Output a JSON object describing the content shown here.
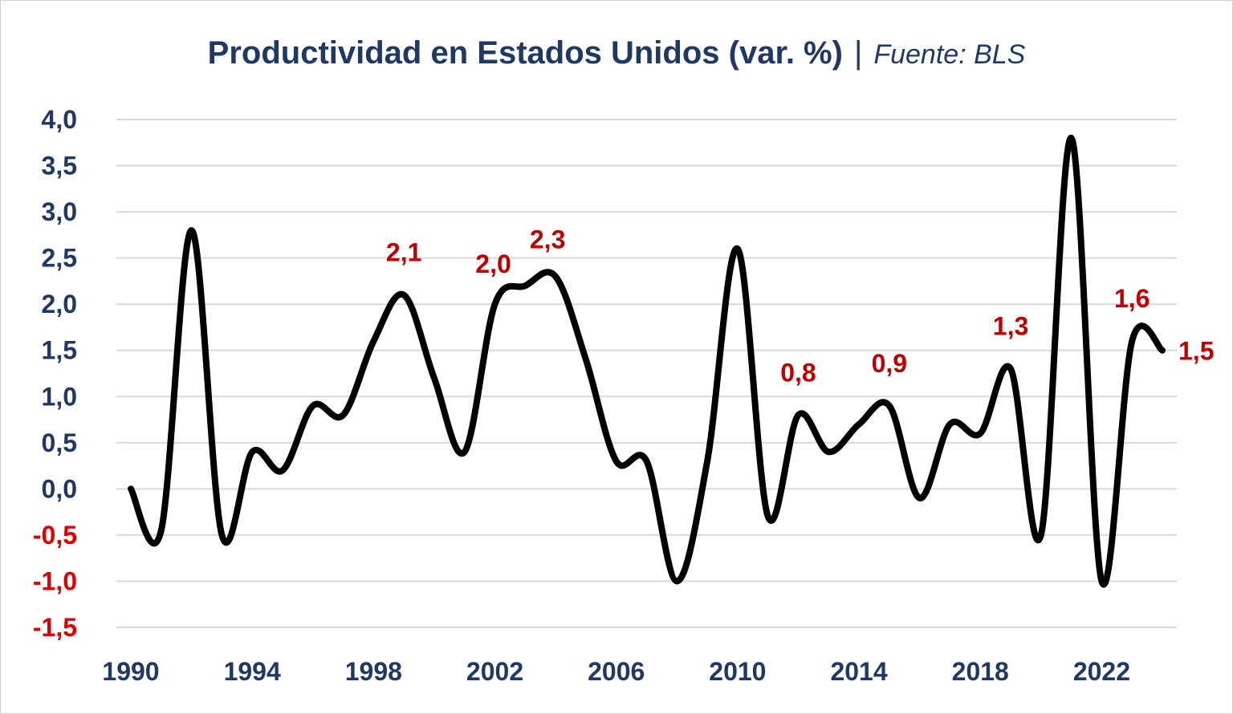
{
  "title": {
    "main": "Productividad en Estados Unidos (var. %)",
    "separator": "|",
    "source": "Fuente: BLS"
  },
  "colors": {
    "title": "#203864",
    "axis_positive": "#203864",
    "axis_negative": "#e00000",
    "line": "#000000",
    "grid": "#d9d9d9",
    "data_label": "#c00000"
  },
  "chart_data": {
    "type": "line",
    "title": "Productividad en Estados Unidos (var. %)",
    "xlabel": "",
    "ylabel": "",
    "ylim": [
      -1.5,
      4.0
    ],
    "y_ticks": [
      "4,0",
      "3,5",
      "3,0",
      "2,5",
      "2,0",
      "1,5",
      "1,0",
      "0,5",
      "0,0",
      "-0,5",
      "-1,0",
      "-1,5"
    ],
    "y_tick_values": [
      4.0,
      3.5,
      3.0,
      2.5,
      2.0,
      1.5,
      1.0,
      0.5,
      0.0,
      -0.5,
      -1.0,
      -1.5
    ],
    "x_ticks": [
      "1990",
      "1994",
      "1998",
      "2002",
      "2006",
      "2010",
      "2014",
      "2018",
      "2022"
    ],
    "x_tick_values": [
      1990,
      1994,
      1998,
      2002,
      2006,
      2010,
      2014,
      2018,
      2022
    ],
    "grid": true,
    "legend": "none",
    "series": [
      {
        "x": [
          1990,
          1991,
          1992,
          1993,
          1994,
          1995,
          1996,
          1997,
          1998,
          1999,
          2000,
          2001,
          2002,
          2003,
          2004,
          2005,
          2006,
          2007,
          2008,
          2009,
          2010,
          2011,
          2012,
          2013,
          2014,
          2015,
          2016,
          2017,
          2018,
          2019,
          2020,
          2021,
          2022,
          2023,
          2024
        ],
        "y": [
          0.0,
          -0.45,
          2.8,
          -0.5,
          0.4,
          0.2,
          0.9,
          0.8,
          1.6,
          2.1,
          1.2,
          0.4,
          2.0,
          2.2,
          2.3,
          1.4,
          0.3,
          0.3,
          -1.0,
          0.3,
          2.6,
          -0.3,
          0.8,
          0.4,
          0.7,
          0.9,
          -0.1,
          0.7,
          0.6,
          1.3,
          -0.5,
          3.8,
          -1.0,
          1.6,
          1.5
        ]
      }
    ],
    "data_labels": [
      {
        "x": 1999,
        "y": 2.1,
        "text": "2,1"
      },
      {
        "x": 2002,
        "y": 2.0,
        "text": "2,0"
      },
      {
        "x": 2004,
        "y": 2.3,
        "text": "2,3"
      },
      {
        "x": 2012,
        "y": 0.8,
        "text": "0,8"
      },
      {
        "x": 2015,
        "y": 0.9,
        "text": "0,9"
      },
      {
        "x": 2019,
        "y": 1.3,
        "text": "1,3"
      },
      {
        "x": 2023,
        "y": 1.6,
        "text": "1,6"
      },
      {
        "x": 2024,
        "y": 1.5,
        "text": "1,5"
      }
    ]
  }
}
